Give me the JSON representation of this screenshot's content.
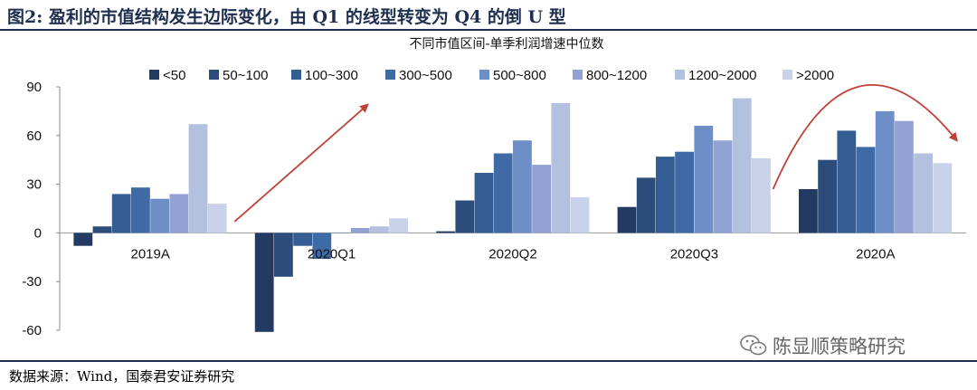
{
  "figure_title": "图2:  盈利的市值结构发生边际变化，由 Q1 的线型转变为 Q4 的倒 U 型",
  "source_note": "数据来源：Wind，国泰君安证券研究",
  "watermark": {
    "text": "陈显顺策略研究",
    "icon": "wechat-icon"
  },
  "chart_data": {
    "type": "bar",
    "title": "不同市值区间-单季利润增速中位数",
    "xlabel": "",
    "ylabel": "",
    "categories": [
      "2019A",
      "2020Q1",
      "2020Q2",
      "2020Q3",
      "2020A"
    ],
    "series": [
      {
        "name": "<50",
        "color": "#233a63",
        "values": [
          -8,
          -61,
          1,
          16,
          27
        ]
      },
      {
        "name": "50~100",
        "color": "#2c4d7c",
        "values": [
          4,
          -27,
          20,
          34,
          45
        ]
      },
      {
        "name": "100~300",
        "color": "#345d94",
        "values": [
          24,
          -8,
          37,
          47,
          63
        ]
      },
      {
        "name": "300~500",
        "color": "#3e6ba6",
        "values": [
          28,
          -16,
          49,
          50,
          53
        ]
      },
      {
        "name": "500~800",
        "color": "#6d8ec7",
        "values": [
          21,
          0,
          57,
          66,
          75
        ]
      },
      {
        "name": "800~1200",
        "color": "#92a3d3",
        "values": [
          24,
          3,
          42,
          57,
          69
        ]
      },
      {
        "name": "1200~2000",
        "color": "#b3c1df",
        "values": [
          67,
          4,
          80,
          83,
          49
        ]
      },
      {
        "name": ">2000",
        "color": "#c9d2e8",
        "values": [
          18,
          9,
          22,
          46,
          43
        ]
      }
    ],
    "ylim": [
      -60,
      90
    ],
    "yticks": [
      90,
      60,
      30,
      0,
      -30,
      -60
    ],
    "grid": false,
    "legend_position": "top",
    "annotations": [
      {
        "type": "arrow",
        "shape": "straight",
        "color": "#c0403a",
        "near": "2020Q1",
        "direction": "up-right"
      },
      {
        "type": "arrow",
        "shape": "arc",
        "color": "#c0403a",
        "near": "2020A",
        "direction": "inverted-U"
      }
    ]
  }
}
